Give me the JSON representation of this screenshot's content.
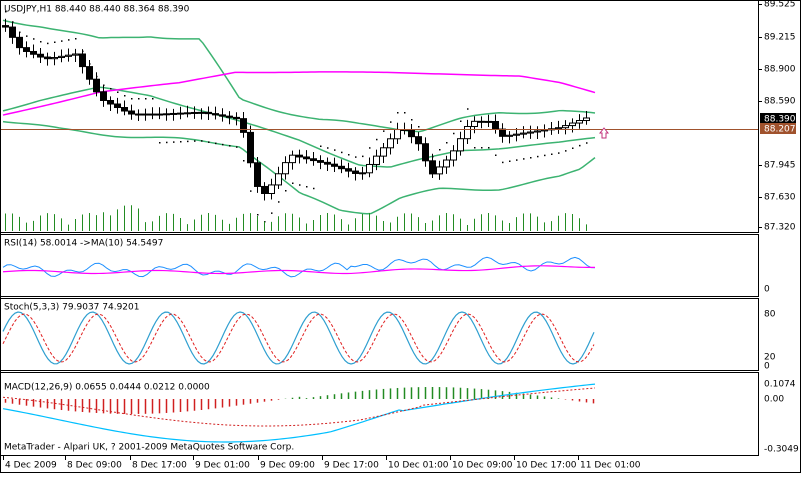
{
  "main_chart": {
    "symbol_info": "USDJPY,H1  88.440 88.440 88.364 88.390",
    "price_axis": [
      "89.525",
      "89.215",
      "88.900",
      "88.590",
      "87.945",
      "87.630",
      "87.320"
    ],
    "bid_label": "88.390",
    "ask_label": "88.207"
  },
  "rsi": {
    "title": "RSI(14) 58.0014  ->MA(10) 54.5497",
    "axis": [
      "0"
    ]
  },
  "stoch": {
    "title": "Stoch(5,3,3) 79.9037 74.9201",
    "axis": [
      "80",
      "20",
      "0"
    ]
  },
  "macd": {
    "title": "MACD(12,26,9) 0.0655 0.0444 0.0212 0.0000",
    "axis": [
      "0.1074",
      "0.00",
      "-0.3049"
    ]
  },
  "time_axis": [
    "4 Dec 2009",
    "8 Dec 09:00",
    "8 Dec 17:00",
    "9 Dec 01:00",
    "9 Dec 09:00",
    "9 Dec 17:00",
    "10 Dec 01:00",
    "10 Dec 09:00",
    "10 Dec 17:00",
    "11 Dec 01:00"
  ],
  "copyright": "MetaTrader - Alpari UK, ? 2001-2009 MetaQuotes Software Corp."
}
